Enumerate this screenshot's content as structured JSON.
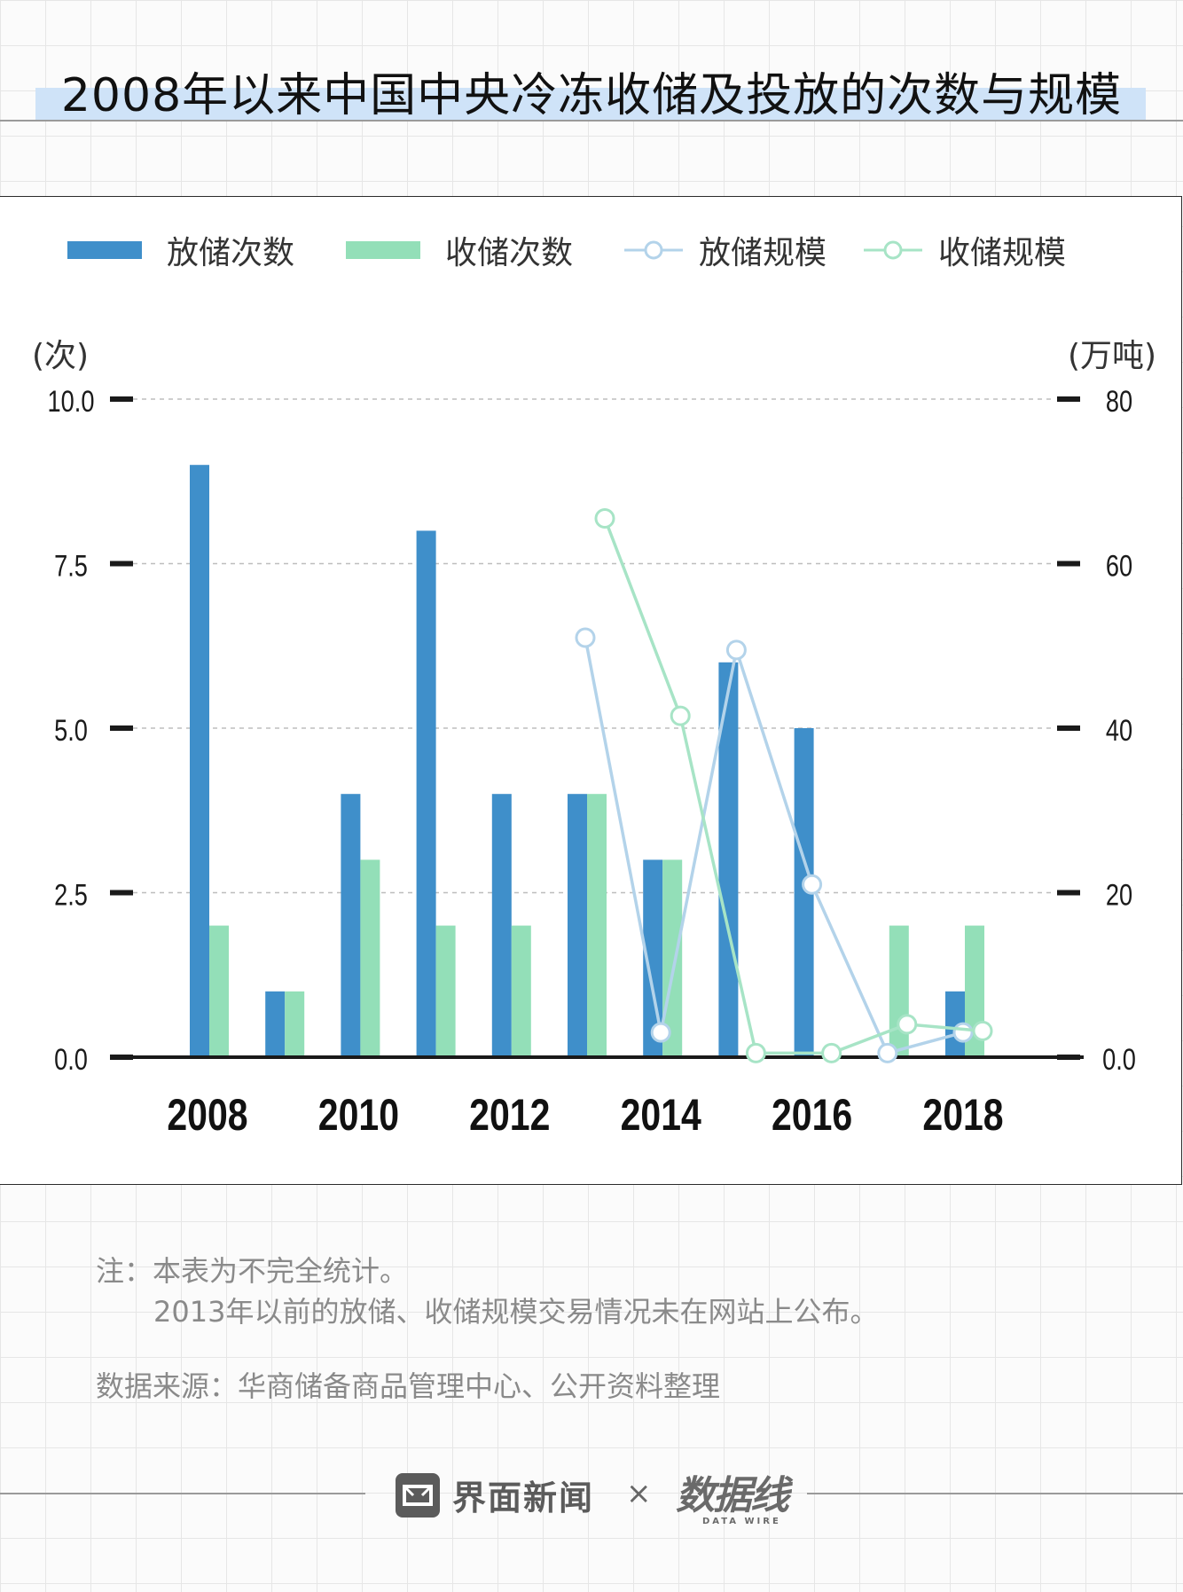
{
  "title": "2008年以来中国中央冷冻收储及投放的次数与规模",
  "legend": {
    "s1": "放储次数",
    "s2": "收储次数",
    "s3": "放储规模",
    "s4": "收储规模"
  },
  "axis": {
    "left_unit": "(次)",
    "right_unit": "(万吨)"
  },
  "notes": {
    "line1": "注：本表为不完全统计。",
    "line2": "2013年以前的放储、收储规模交易情况未在网站上公布。",
    "source": "数据来源：华商储备商品管理中心、公开资料整理"
  },
  "footer": {
    "brand": "界面新闻",
    "times": "×",
    "datawire": "数据线",
    "datawire_sub": "DATA WIRE"
  },
  "colors": {
    "release_bar": "#3f8fca",
    "purchase_bar": "#93dfb8",
    "release_line": "#b3d3ea",
    "purchase_line": "#a7e4c6"
  },
  "chart_data": {
    "type": "bar",
    "categories": [
      "2008",
      "2009",
      "2010",
      "2011",
      "2012",
      "2013",
      "2014",
      "2015",
      "2016",
      "2017",
      "2018"
    ],
    "x_tick_labels": [
      "2008",
      "2010",
      "2012",
      "2014",
      "2016",
      "2018"
    ],
    "y_left": {
      "label": "(次)",
      "lim": [
        0,
        10
      ],
      "ticks": [
        "0.0",
        "2.5",
        "5.0",
        "7.5",
        "10.0"
      ]
    },
    "y_right": {
      "label": "(万吨)",
      "lim": [
        0,
        80
      ],
      "ticks": [
        "0.0",
        "20",
        "40",
        "60",
        "80"
      ]
    },
    "grid": true,
    "legend_position": "top",
    "series": [
      {
        "name": "放储次数",
        "type": "bar",
        "axis": "left",
        "values": [
          9,
          1,
          4,
          8,
          4,
          4,
          3,
          6,
          5,
          0,
          1
        ]
      },
      {
        "name": "收储次数",
        "type": "bar",
        "axis": "left",
        "values": [
          2,
          1,
          3,
          2,
          2,
          4,
          3,
          0,
          0,
          2,
          2
        ]
      },
      {
        "name": "放储规模",
        "type": "line",
        "axis": "right",
        "points": [
          [
            "2013",
            51
          ],
          [
            "2014",
            3
          ],
          [
            "2015",
            49.5
          ],
          [
            "2016",
            21
          ],
          [
            "2017",
            0.5
          ],
          [
            "2018",
            3
          ]
        ]
      },
      {
        "name": "收储规模",
        "type": "line",
        "axis": "right",
        "points": [
          [
            "2013",
            65.5
          ],
          [
            "2014",
            41.5
          ],
          [
            "2015",
            0.5
          ],
          [
            "2016",
            0.5
          ],
          [
            "2017",
            4
          ],
          [
            "2018",
            3.2
          ]
        ]
      }
    ]
  }
}
